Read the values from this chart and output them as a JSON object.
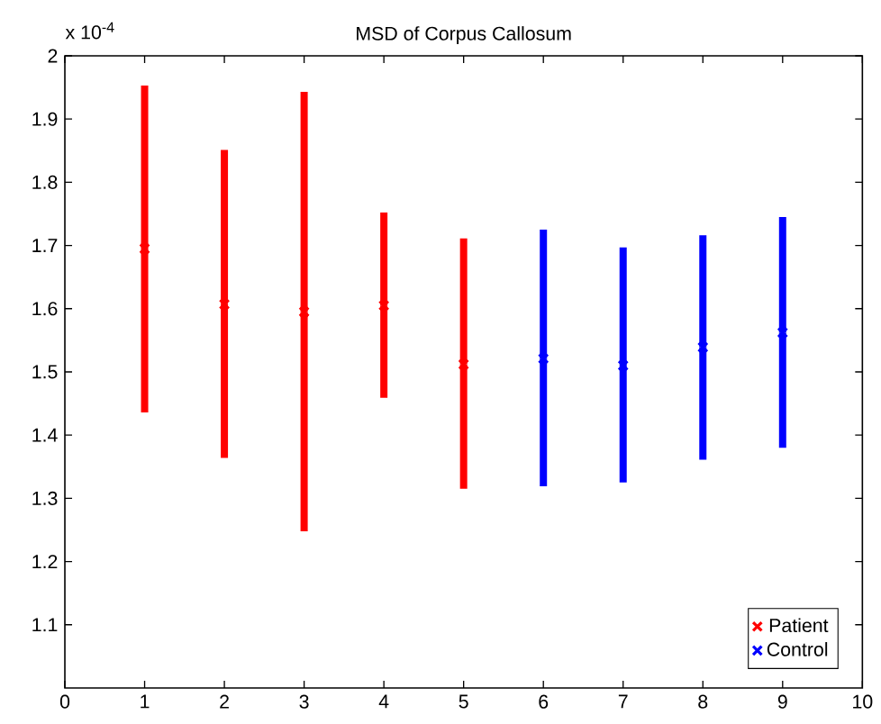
{
  "chart_data": {
    "type": "scatter",
    "title": "MSD of Corpus Callosum",
    "annotations": [
      "x 10$^{-4}$"
    ],
    "xlim": [
      0,
      10
    ],
    "xticks": [
      0,
      1,
      2,
      3,
      4,
      5,
      6,
      7,
      8,
      9,
      10
    ],
    "ylim": [
      1,
      2
    ],
    "yticks": [
      1.1,
      1.2,
      1.3,
      1.4,
      1.5,
      1.6,
      1.7,
      1.8,
      1.9,
      2
    ],
    "marker": "cross",
    "grid": false,
    "legend": "bottom right",
    "series": [
      {
        "name": "Patient",
        "color": "#ff0000",
        "x": [
          1,
          2,
          3,
          4,
          5
        ],
        "values": [
          1.695,
          1.607,
          1.595,
          1.605,
          1.512
        ],
        "errors": [
          [
            1.436,
            1.953
          ],
          [
            1.364,
            1.851
          ],
          [
            1.248,
            1.943
          ],
          [
            1.459,
            1.752
          ],
          [
            1.315,
            1.711
          ]
        ]
      },
      {
        "name": "Control",
        "color": "#0000ff",
        "x": [
          6,
          7,
          8,
          9
        ],
        "values": [
          1.521,
          1.51,
          1.539,
          1.562
        ],
        "errors": [
          [
            1.319,
            1.725
          ],
          [
            1.325,
            1.697
          ],
          [
            1.361,
            1.716
          ],
          [
            1.38,
            1.745
          ]
        ]
      }
    ]
  }
}
